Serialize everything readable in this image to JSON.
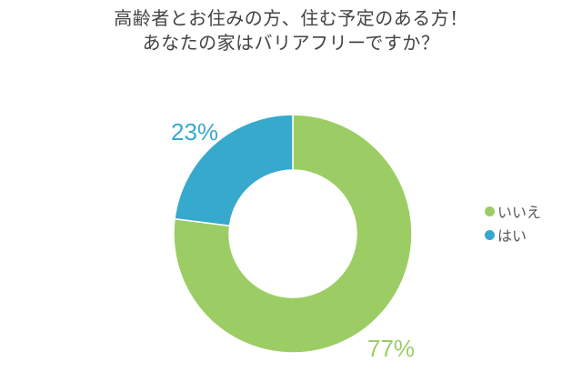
{
  "title": {
    "line1": "高齢者とお住みの方、住む予定のある方！",
    "line2": "あなたの家はバリアフリーですか？"
  },
  "chart_data": {
    "type": "pie",
    "subtype": "donut",
    "title": "高齢者とお住みの方、住む予定のある方！ あなたの家はバリアフリーですか？",
    "categories": [
      "いいえ",
      "はい"
    ],
    "values": [
      77,
      23
    ],
    "unit": "%",
    "start_angle_deg": 0,
    "direction": "clockwise",
    "legend_position": "right",
    "inner_radius_ratio": 0.53,
    "series": [
      {
        "key": "no",
        "name": "いいえ",
        "value": 77,
        "label": "77%",
        "color": "#9CCD64"
      },
      {
        "key": "yes",
        "name": "はい",
        "value": 23,
        "label": "23%",
        "color": "#36A9CD"
      }
    ],
    "background": "#ffffff",
    "title_color": "#434343",
    "legend_text_color": "#595959"
  }
}
